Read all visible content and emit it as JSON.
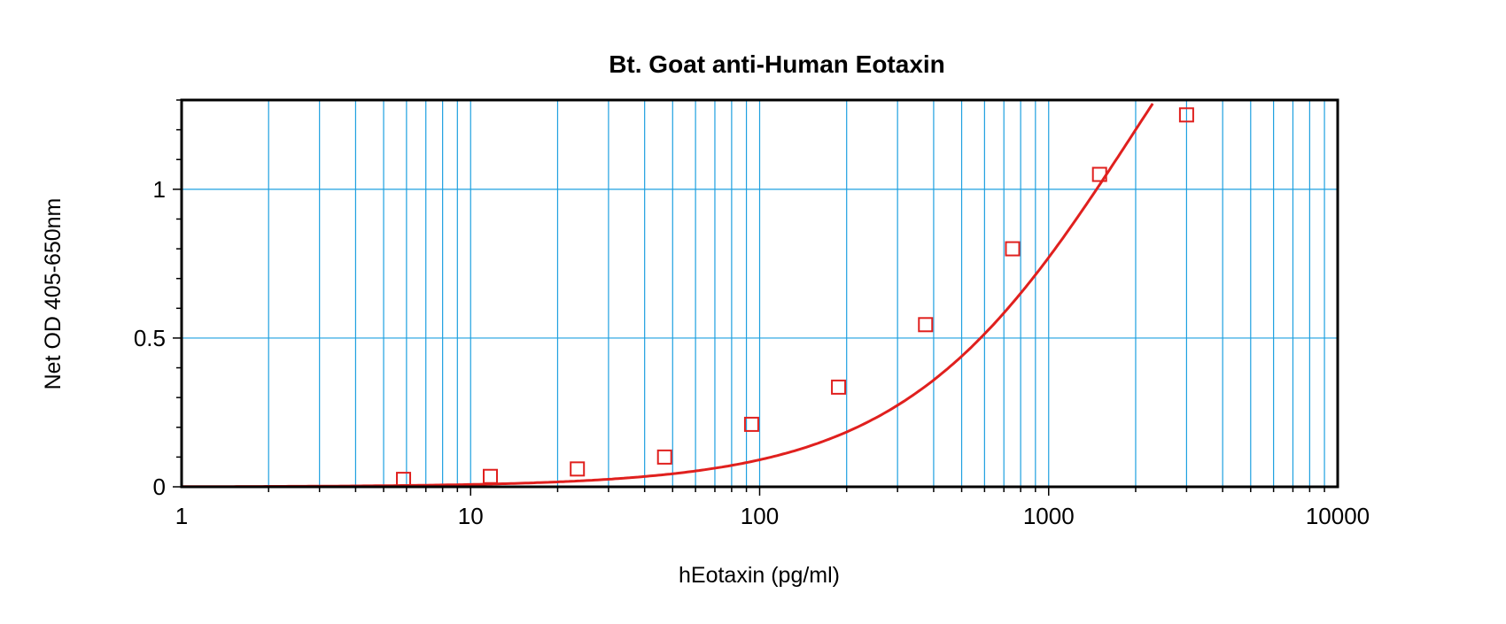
{
  "chart_data": {
    "type": "scatter",
    "title": "Bt. Goat anti-Human Eotaxin",
    "xlabel": "hEotaxin (pg/ml)",
    "ylabel": "Net OD 405-650nm",
    "x_scale": "log",
    "xlim": [
      1,
      10000
    ],
    "ylim": [
      0,
      1.3
    ],
    "x_ticks": [
      "1",
      "10",
      "100",
      "1000",
      "10000"
    ],
    "y_ticks": [
      "0",
      "0.5",
      "1"
    ],
    "grid": true,
    "legend": "none",
    "colors": {
      "series": "#e0201e",
      "grid": "#1ea0e0",
      "axes": "#000000"
    },
    "series": [
      {
        "marker": "square",
        "x": [
          5.86,
          11.7,
          23.4,
          46.9,
          93.8,
          187.5,
          375,
          750,
          1500,
          3000
        ],
        "y": [
          0.025,
          0.035,
          0.06,
          0.1,
          0.21,
          0.335,
          0.545,
          0.8,
          1.05,
          1.25
        ]
      }
    ],
    "fit_curve": {
      "type": "4PL",
      "a": 0.0,
      "b": 1.08,
      "c": 2000,
      "d": 2.4
    }
  }
}
